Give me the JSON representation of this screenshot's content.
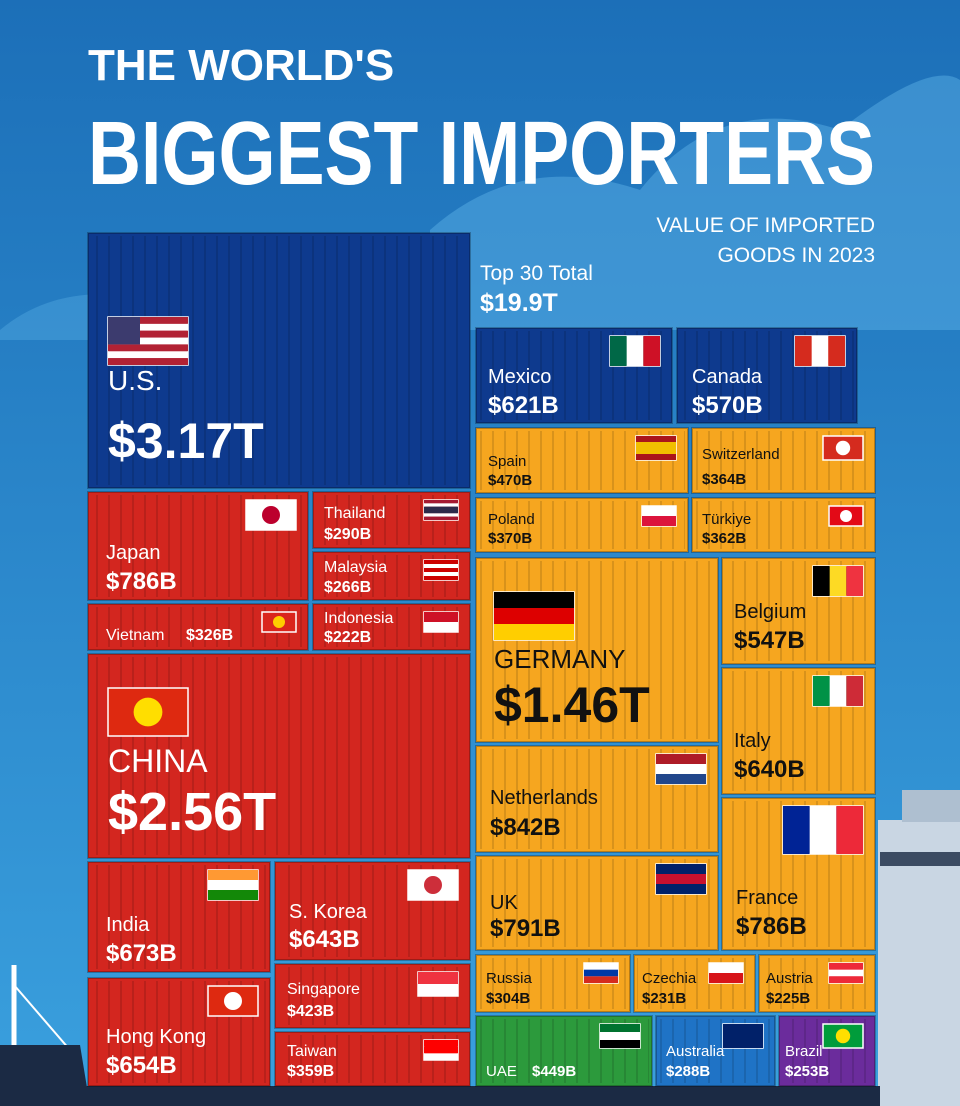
{
  "chart_data": {
    "type": "treemap",
    "title": [
      "THE WORLD'S",
      "BIGGEST IMPORTERS"
    ],
    "subtitle": [
      "VALUE OF IMPORTED",
      "GOODS IN 2023"
    ],
    "total": {
      "label": "Top 30 Total",
      "value": 19900,
      "value_label": "$19.9T"
    },
    "categories": [
      "U.S.",
      "Mexico",
      "Canada",
      "Japan",
      "Thailand",
      "Malaysia",
      "Vietnam",
      "Indonesia",
      "CHINA",
      "India",
      "S. Korea",
      "Singapore",
      "Taiwan",
      "Hong Kong",
      "Spain",
      "Switzerland",
      "Poland",
      "Türkiye",
      "GERMANY",
      "Belgium",
      "Italy",
      "Netherlands",
      "UK",
      "France",
      "Russia",
      "Czechia",
      "Austria",
      "UAE",
      "Australia",
      "Brazil"
    ],
    "values": [
      3170,
      621,
      570,
      786,
      290,
      266,
      326,
      222,
      2560,
      673,
      643,
      423,
      359,
      654,
      470,
      364,
      370,
      362,
      1460,
      547,
      640,
      842,
      791,
      786,
      304,
      231,
      225,
      449,
      288,
      253
    ],
    "value_labels": [
      "$3.17T",
      "$621B",
      "$570B",
      "$786B",
      "$290B",
      "$266B",
      "$326B",
      "$222B",
      "$2.56T",
      "$673B",
      "$643B",
      "$423B",
      "$359B",
      "$654B",
      "$470B",
      "$364B",
      "$370B",
      "$362B",
      "$1.46T",
      "$547B",
      "$640B",
      "$842B",
      "$791B",
      "$786B",
      "$304B",
      "$231B",
      "$225B",
      "$449B",
      "$288B",
      "$253B"
    ],
    "colors": [
      "#0e3a8e",
      "#0e3a8e",
      "#0e3a8e",
      "#d3261f",
      "#d3261f",
      "#d3261f",
      "#d3261f",
      "#d3261f",
      "#d3261f",
      "#d3261f",
      "#d3261f",
      "#d3261f",
      "#d3261f",
      "#d3261f",
      "#f6a61f",
      "#f6a61f",
      "#f6a61f",
      "#f6a61f",
      "#f6a61f",
      "#f6a61f",
      "#f6a61f",
      "#f6a61f",
      "#f6a61f",
      "#f6a61f",
      "#f6a61f",
      "#f6a61f",
      "#f6a61f",
      "#2c9a3c",
      "#1f73c6",
      "#6b2c9c"
    ]
  }
}
